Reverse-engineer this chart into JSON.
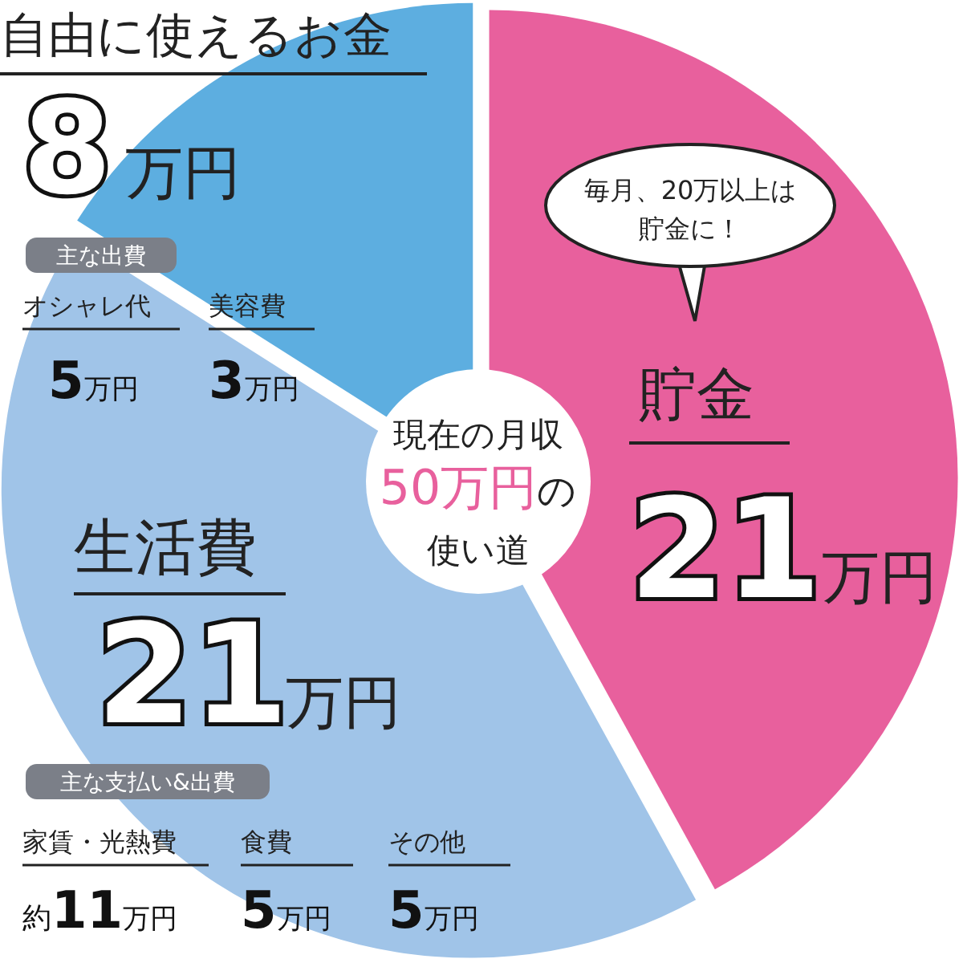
{
  "chart_data": {
    "type": "pie",
    "title": "現在の月収50万円の使い道",
    "categories": [
      "貯金",
      "生活費",
      "自由に使えるお金"
    ],
    "values": [
      21,
      21,
      8
    ],
    "colors": [
      "#e8609d",
      "#a0c4e8",
      "#5daee0"
    ],
    "value_labels": [
      "21万円",
      "21万円",
      "8万円"
    ],
    "annotations": [
      "毎月、20万以上は貯金に！",
      "主な出費",
      "オシャレ代",
      "5万円",
      "美容費",
      "3万円",
      "主な支払い&出費",
      "家賃・光熱費",
      "約11万円",
      "食費",
      "5万円",
      "その他",
      "5万円"
    ]
  }
}
